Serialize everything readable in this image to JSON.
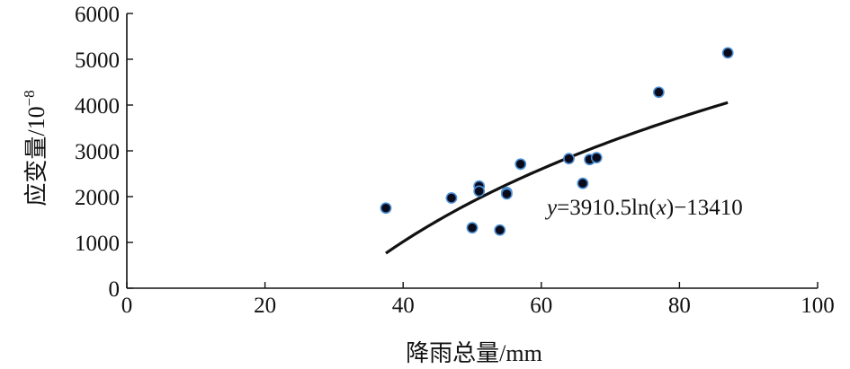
{
  "chart_data": {
    "type": "scatter",
    "title": "",
    "xlabel": "降雨总量/mm",
    "ylabel": "应变量/10",
    "ylabel_exponent": "−8",
    "xlim": [
      0,
      100
    ],
    "ylim": [
      0,
      6000
    ],
    "xticks": [
      0,
      20,
      40,
      60,
      80,
      100
    ],
    "yticks": [
      0,
      1000,
      2000,
      3000,
      4000,
      5000,
      6000
    ],
    "xtick_labels": [
      "0",
      "20",
      "40",
      "60",
      "80",
      "100"
    ],
    "ytick_labels": [
      "0",
      "1000",
      "2000",
      "3000",
      "4000",
      "5000",
      "6000"
    ],
    "grid": false,
    "points": [
      {
        "x": 37.5,
        "y": 1750
      },
      {
        "x": 47,
        "y": 1970
      },
      {
        "x": 50,
        "y": 1320
      },
      {
        "x": 51,
        "y": 2230
      },
      {
        "x": 51,
        "y": 2120
      },
      {
        "x": 54,
        "y": 1270
      },
      {
        "x": 55,
        "y": 2090
      },
      {
        "x": 55,
        "y": 2060
      },
      {
        "x": 57,
        "y": 2710
      },
      {
        "x": 64,
        "y": 2830
      },
      {
        "x": 66,
        "y": 2290
      },
      {
        "x": 67,
        "y": 2810
      },
      {
        "x": 68,
        "y": 2850
      },
      {
        "x": 77,
        "y": 4280
      },
      {
        "x": 87,
        "y": 5140
      }
    ],
    "point_color": "#0a0a1a",
    "point_edge_color": "#4a8fd6",
    "fit": {
      "type": "log",
      "a": 3910.5,
      "b": -13410,
      "x_range": [
        37.5,
        87
      ],
      "color": "#111111"
    },
    "equation": {
      "y": "y",
      "equals": "=3910.5ln(",
      "x": "x",
      "rest": ")−13410"
    }
  }
}
